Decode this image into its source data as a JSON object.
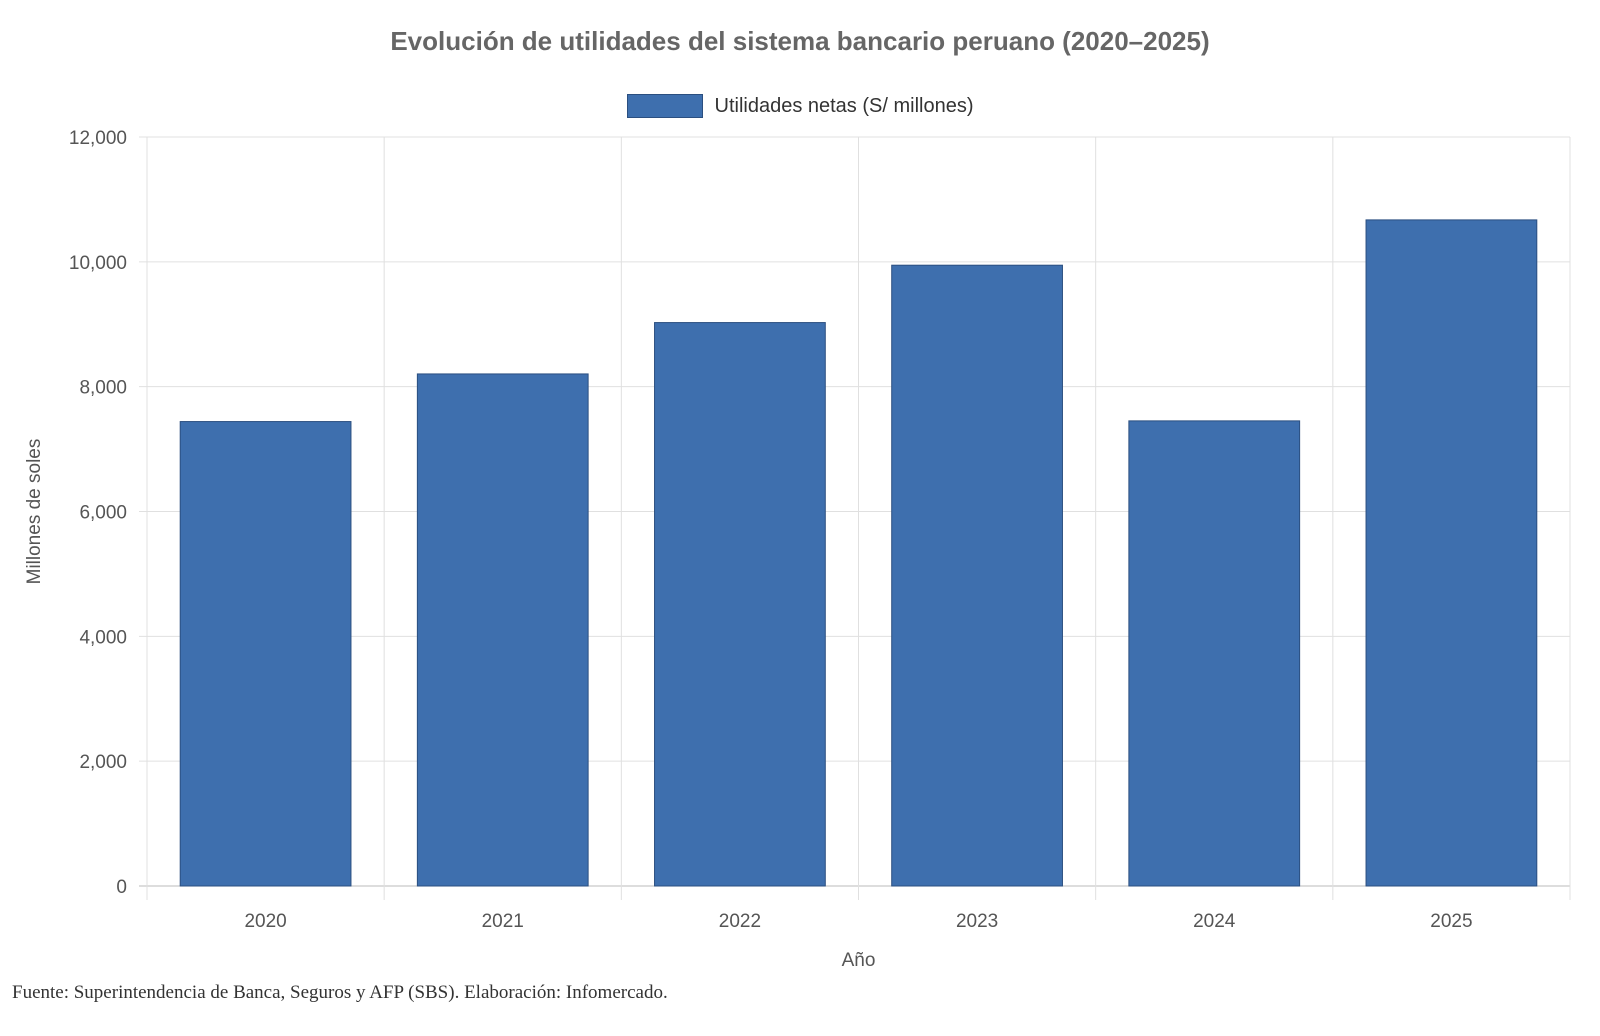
{
  "chart_data": {
    "type": "bar",
    "title": "Evolución de utilidades del sistema bancario peruano (2020–2025)",
    "legend": [
      "Utilidades netas (S/ millones)"
    ],
    "legend_position": "top",
    "categories": [
      "2020",
      "2021",
      "2022",
      "2023",
      "2024",
      "2025"
    ],
    "series": [
      {
        "name": "Utilidades netas (S/ millones)",
        "values": [
          7441,
          8204,
          9027,
          9946,
          7452,
          10672
        ]
      }
    ],
    "xlabel": "Año",
    "ylabel": "Millones de soles",
    "ylim": [
      0,
      12000
    ],
    "yticks": [
      "0",
      "2,000",
      "4,000",
      "6,000",
      "8,000",
      "10,000",
      "12,000"
    ],
    "grid": true,
    "colors": {
      "bar": "#3e6fae",
      "bar_border": "#2b4f80",
      "grid": "#e0e0e0"
    }
  },
  "source": "Fuente: Superintendencia de Banca, Seguros y AFP (SBS). Elaboración: Infomercado."
}
